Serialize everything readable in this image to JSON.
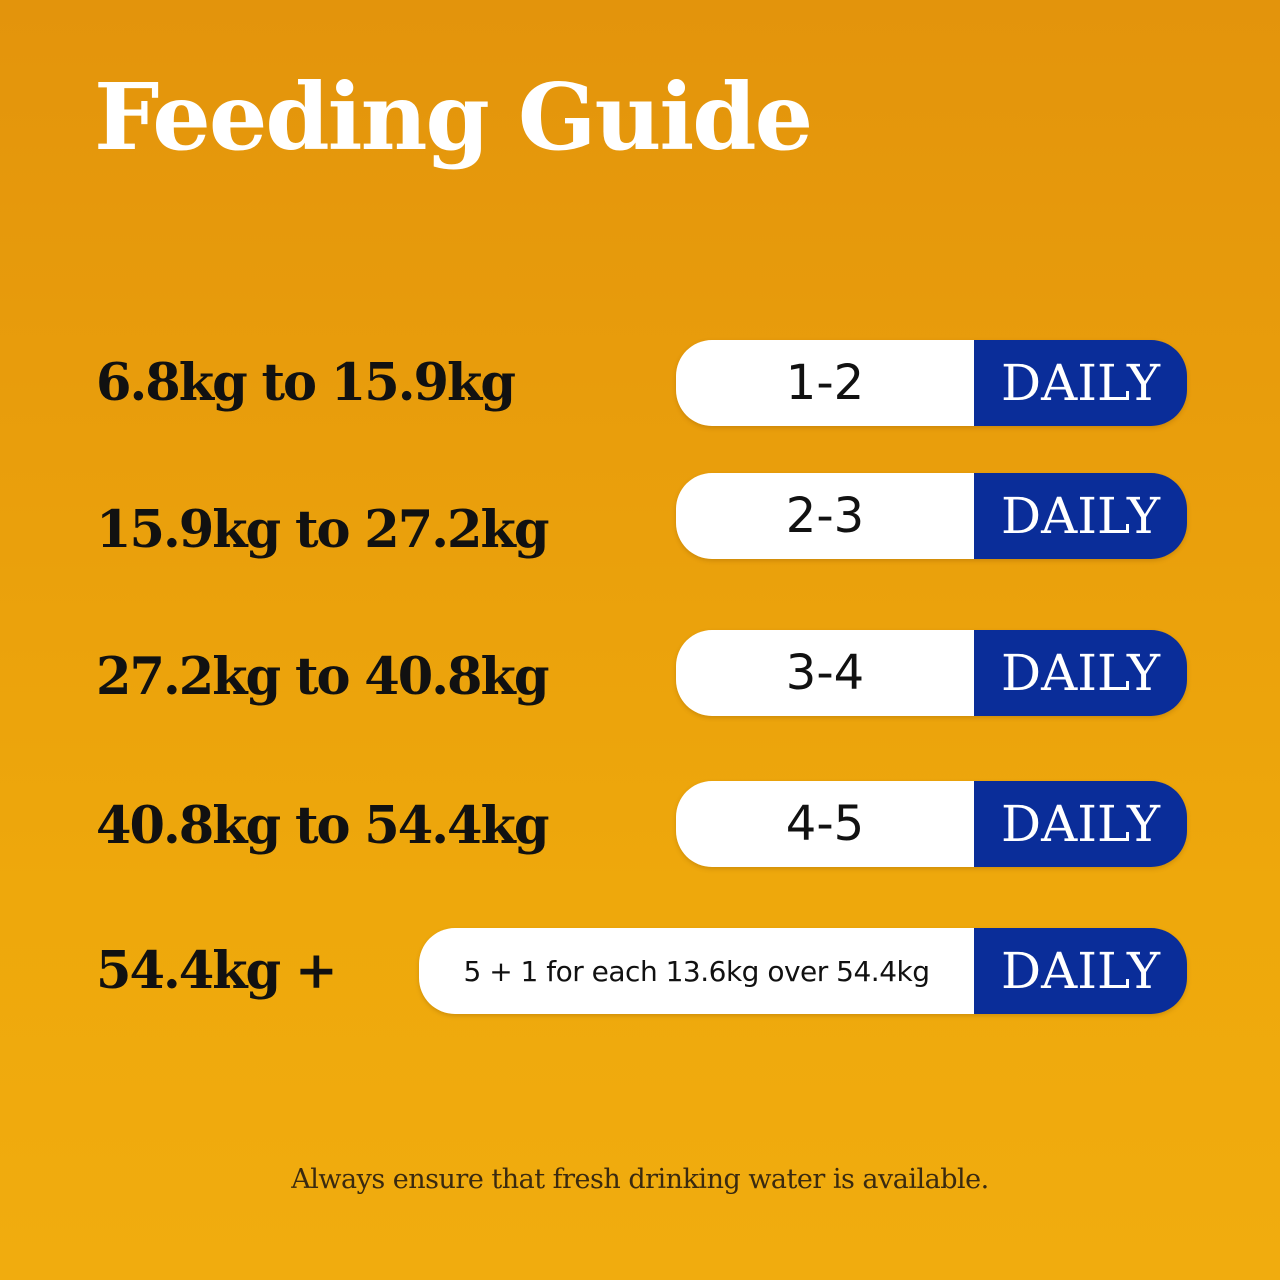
{
  "title": "Feeding Guide",
  "rows": [
    {
      "range": "6.8kg to 15.9kg",
      "amount": "1-2",
      "frequency": "DAILY"
    },
    {
      "range": "15.9kg to 27.2kg",
      "amount": "2-3",
      "frequency": "DAILY"
    },
    {
      "range": "27.2kg to 40.8kg",
      "amount": "3-4",
      "frequency": "DAILY"
    },
    {
      "range": "40.8kg to 54.4kg",
      "amount": "4-5",
      "frequency": "DAILY"
    },
    {
      "range": "54.4kg +",
      "amount": "5 + 1 for each 13.6kg over 54.4kg",
      "frequency": "DAILY"
    }
  ],
  "footnote": "Always ensure that fresh drinking water is available.",
  "colors": {
    "background": "#e99e0c",
    "pill_amount": "#ffffff",
    "pill_frequency": "#0a2d99",
    "title": "#ffffff",
    "range_text": "#111111"
  }
}
